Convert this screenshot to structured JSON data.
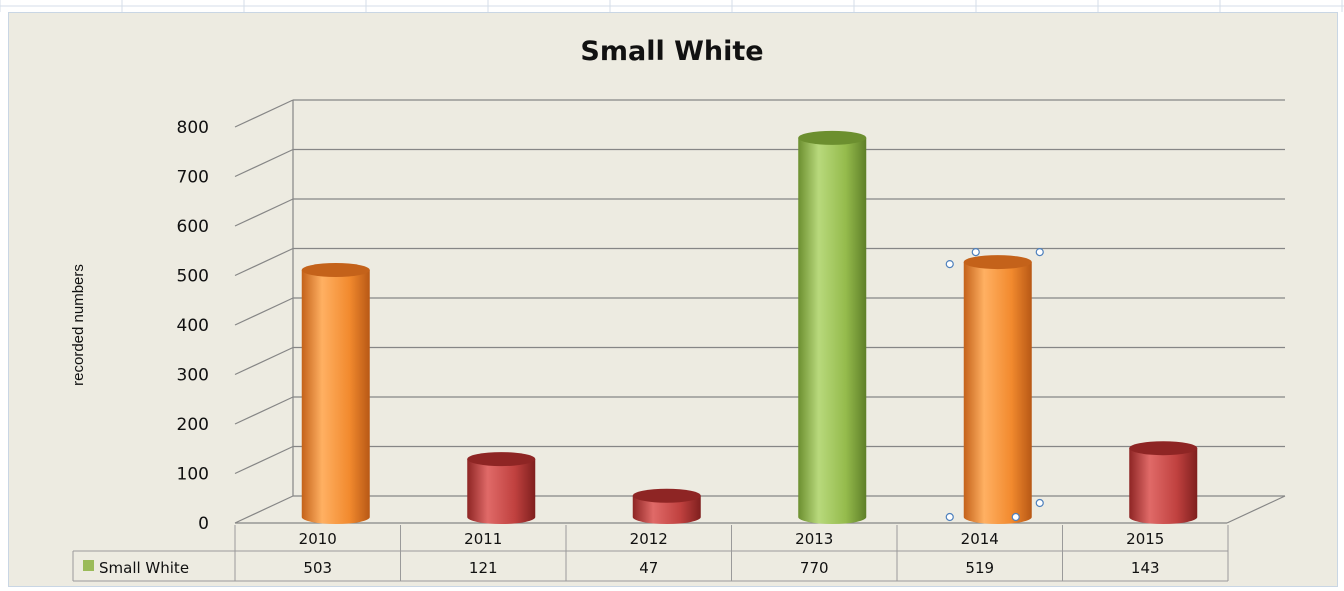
{
  "chart_data": {
    "type": "bar",
    "title": "Small White",
    "ylabel": "recorded numbers",
    "xlabel": "",
    "categories": [
      "2010",
      "2011",
      "2012",
      "2013",
      "2014",
      "2015"
    ],
    "series": [
      {
        "name": "Small White",
        "values": [
          503,
          121,
          47,
          770,
          519,
          143
        ]
      }
    ],
    "ylim": [
      0,
      800
    ],
    "yticks": [
      "0",
      "100",
      "200",
      "300",
      "400",
      "500",
      "600",
      "700",
      "800"
    ],
    "grid": true,
    "style": "3d-cylinder",
    "data_table": true,
    "bar_colors": [
      "#f7923a",
      "#c0413f",
      "#c0413f",
      "#9bc153",
      "#f7923a",
      "#c0413f"
    ],
    "legend_key_color": "#9bbb59"
  },
  "colors": {
    "background": "#edebe1",
    "gridline": "#868686",
    "orange": "#f7923a",
    "red": "#c0413f",
    "green": "#9bc153"
  }
}
